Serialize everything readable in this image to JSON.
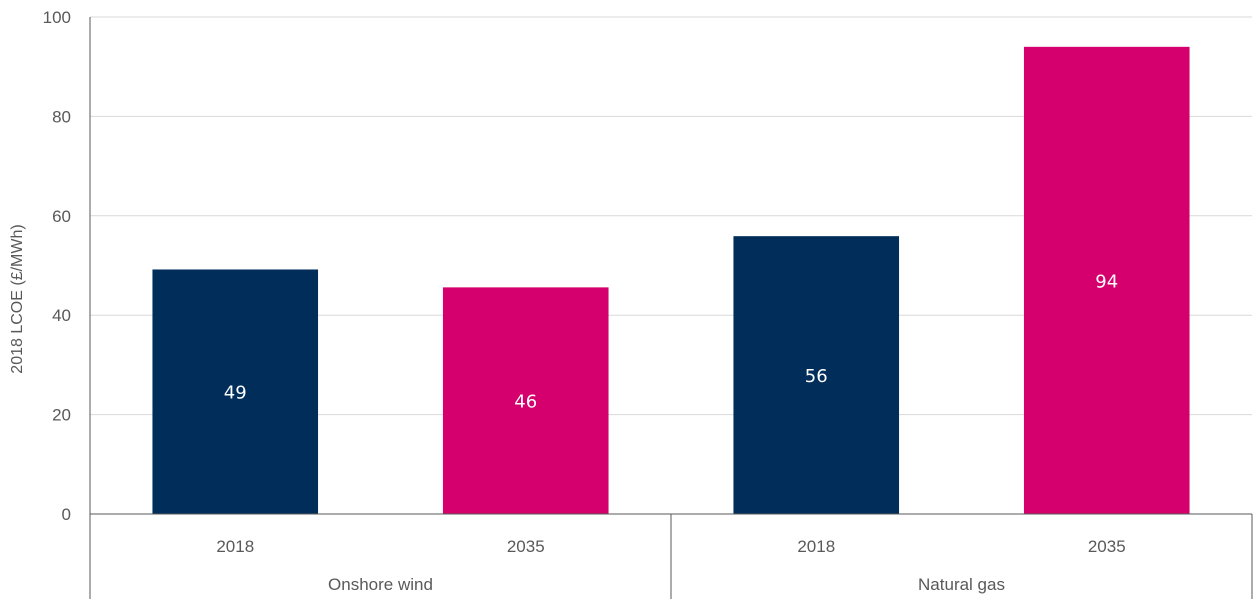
{
  "chart_data": {
    "type": "bar",
    "ylabel": "2018 LCOE (£/MWh)",
    "ylim": [
      0,
      100
    ],
    "yticks": [
      0,
      20,
      40,
      60,
      80,
      100
    ],
    "grid": true,
    "groups": [
      {
        "name": "Onshore wind",
        "bars": [
          {
            "category": "2018",
            "value": 49.2,
            "label": "49",
            "color": "#002d5a"
          },
          {
            "category": "2035",
            "value": 45.6,
            "label": "46",
            "color": "#d5006d"
          }
        ]
      },
      {
        "name": "Natural gas",
        "bars": [
          {
            "category": "2018",
            "value": 55.9,
            "label": "56",
            "color": "#002d5a"
          },
          {
            "category": "2035",
            "value": 94.0,
            "label": "94",
            "color": "#d5006d"
          }
        ]
      }
    ],
    "colors": {
      "grid": "#d9d9d9",
      "axis": "#595959"
    }
  }
}
